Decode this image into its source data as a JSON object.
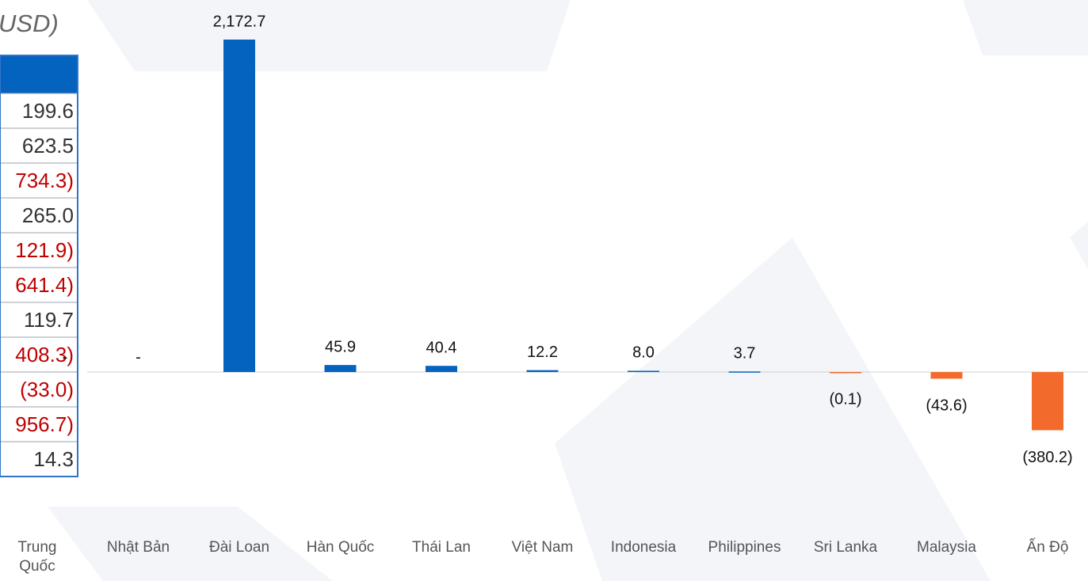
{
  "title": "USD)",
  "table": {
    "rows": [
      {
        "text": "199.6",
        "negative": false
      },
      {
        "text": "623.5",
        "negative": false
      },
      {
        "text": "734.3)",
        "negative": true
      },
      {
        "text": "265.0",
        "negative": false
      },
      {
        "text": "121.9)",
        "negative": true
      },
      {
        "text": "641.4)",
        "negative": true
      },
      {
        "text": "119.7",
        "negative": false
      },
      {
        "text": "408.3)",
        "negative": true
      },
      {
        "text": "(33.0)",
        "negative": true
      },
      {
        "text": "956.7)",
        "negative": true
      },
      {
        "text": "14.3",
        "negative": false
      }
    ]
  },
  "chart_data": {
    "type": "bar",
    "categories": [
      "Trung Quốc",
      "Nhật Bản",
      "Đài Loan",
      "Hàn Quốc",
      "Thái Lan",
      "Việt Nam",
      "Indonesia",
      "Philippines",
      "Sri Lanka",
      "Malaysia",
      "Ấn Độ"
    ],
    "values": [
      null,
      null,
      2172.7,
      45.9,
      40.4,
      12.2,
      8.0,
      3.7,
      -0.1,
      -43.6,
      -380.2
    ],
    "value_labels": [
      "-",
      "-",
      "2,172.7",
      "45.9",
      "40.4",
      "12.2",
      "8.0",
      "3.7",
      "(0.1)",
      "(43.6)",
      "(380.2)"
    ],
    "color_positive": "#0563c0",
    "color_negative": "#f26b2c"
  }
}
